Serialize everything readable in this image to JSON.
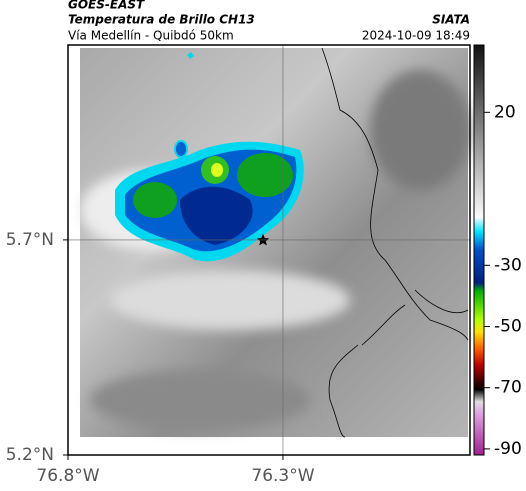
{
  "header": {
    "satellite": "GOES-EAST",
    "product": "Temperatura de Brillo CH13",
    "region": "Vía Medellín - Quibdó 50km",
    "source": "SIATA",
    "timestamp": "2024-10-09 18:49"
  },
  "map": {
    "xlim": [
      -76.8,
      -75.865
    ],
    "ylim": [
      5.2,
      6.153
    ],
    "xticks": [
      {
        "value": -76.8,
        "label": "76.8°W"
      },
      {
        "value": -76.3,
        "label": "76.3°W"
      }
    ],
    "yticks": [
      {
        "value": 5.7,
        "label": "5.7°N"
      },
      {
        "value": 5.2,
        "label": "5.2°N"
      }
    ]
  },
  "colorbar": {
    "clim": [
      -92,
      42
    ],
    "ticks": [
      20,
      -30,
      -50,
      -70,
      -90
    ]
  }
}
